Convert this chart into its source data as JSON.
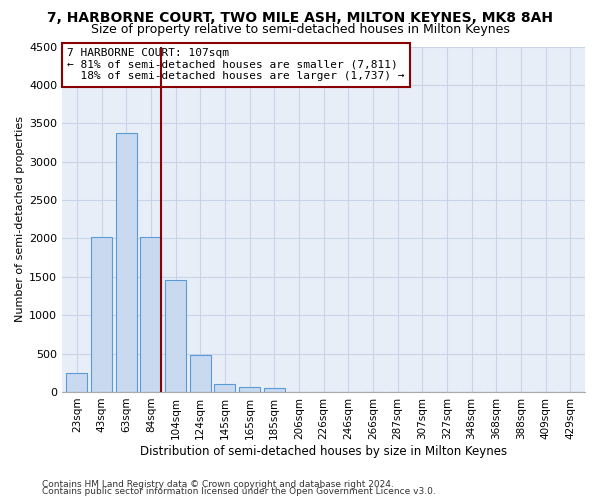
{
  "title": "7, HARBORNE COURT, TWO MILE ASH, MILTON KEYNES, MK8 8AH",
  "subtitle": "Size of property relative to semi-detached houses in Milton Keynes",
  "xlabel": "Distribution of semi-detached houses by size in Milton Keynes",
  "ylabel": "Number of semi-detached properties",
  "footer1": "Contains HM Land Registry data © Crown copyright and database right 2024.",
  "footer2": "Contains public sector information licensed under the Open Government Licence v3.0.",
  "categories": [
    "23sqm",
    "43sqm",
    "63sqm",
    "84sqm",
    "104sqm",
    "124sqm",
    "145sqm",
    "165sqm",
    "185sqm",
    "206sqm",
    "226sqm",
    "246sqm",
    "266sqm",
    "287sqm",
    "307sqm",
    "327sqm",
    "348sqm",
    "368sqm",
    "388sqm",
    "409sqm",
    "429sqm"
  ],
  "values": [
    250,
    2025,
    3375,
    2025,
    1460,
    480,
    100,
    60,
    55,
    0,
    0,
    0,
    0,
    0,
    0,
    0,
    0,
    0,
    0,
    0,
    0
  ],
  "bar_color": "#c9d9f0",
  "bar_edge_color": "#5b9bd5",
  "vline_color": "#8b0000",
  "annotation_line1": "7 HARBORNE COURT: 107sqm",
  "annotation_line2": "← 81% of semi-detached houses are smaller (7,811)",
  "annotation_line3": "  18% of semi-detached houses are larger (1,737) →",
  "annotation_box_color": "#8b0000",
  "ylim": [
    0,
    4500
  ],
  "yticks": [
    0,
    500,
    1000,
    1500,
    2000,
    2500,
    3000,
    3500,
    4000,
    4500
  ],
  "grid_color": "#c8d4e8",
  "bg_color": "#e8eef8",
  "title_fontsize": 10,
  "subtitle_fontsize": 9
}
